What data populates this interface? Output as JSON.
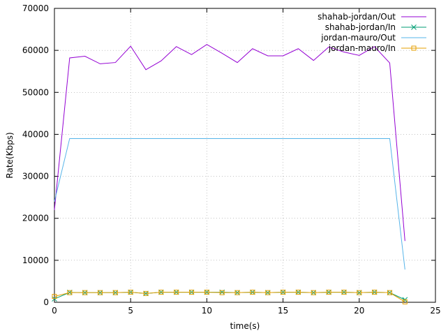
{
  "chart_data": {
    "type": "line",
    "title": "",
    "xlabel": "time(s)",
    "ylabel": "Rate(Kbps)",
    "xlim": [
      0,
      25
    ],
    "ylim": [
      0,
      70000
    ],
    "xticks": [
      0,
      5,
      10,
      15,
      20,
      25
    ],
    "yticks": [
      0,
      10000,
      20000,
      30000,
      40000,
      50000,
      60000,
      70000
    ],
    "grid": true,
    "legend_position": "top-right",
    "series": [
      {
        "name": "shahab-jordan/Out",
        "color": "#9400d3",
        "marker": "none",
        "x": [
          0,
          1,
          2,
          3,
          4,
          5,
          6,
          7,
          8,
          9,
          10,
          11,
          12,
          13,
          14,
          15,
          16,
          17,
          18,
          19,
          20,
          21,
          22,
          23
        ],
        "y": [
          22000,
          58200,
          58600,
          56800,
          57100,
          61000,
          55400,
          57500,
          60900,
          59000,
          61400,
          59300,
          57100,
          60400,
          58700,
          58700,
          60400,
          57600,
          60800,
          59600,
          58800,
          60900,
          57000,
          14600
        ]
      },
      {
        "name": "shahab-jordan/In",
        "color": "#009e73",
        "marker": "x",
        "x": [
          0,
          1,
          2,
          3,
          4,
          5,
          6,
          7,
          8,
          9,
          10,
          11,
          12,
          13,
          14,
          15,
          16,
          17,
          18,
          19,
          20,
          21,
          22,
          23
        ],
        "y": [
          800,
          2350,
          2300,
          2300,
          2300,
          2400,
          2100,
          2400,
          2400,
          2400,
          2400,
          2400,
          2300,
          2400,
          2300,
          2400,
          2400,
          2300,
          2400,
          2400,
          2300,
          2400,
          2300,
          600
        ]
      },
      {
        "name": "jordan-mauro/Out",
        "color": "#56b4e9",
        "marker": "none",
        "x": [
          0,
          1,
          2,
          3,
          4,
          5,
          6,
          7,
          8,
          9,
          10,
          11,
          12,
          13,
          14,
          15,
          16,
          17,
          18,
          19,
          20,
          21,
          22,
          23
        ],
        "y": [
          24000,
          39000,
          39000,
          39000,
          39000,
          39000,
          39000,
          39000,
          39000,
          39000,
          39000,
          39000,
          39000,
          39000,
          39000,
          39000,
          39000,
          39000,
          39000,
          39000,
          39000,
          39000,
          39000,
          7800
        ]
      },
      {
        "name": "jordan-mauro/In",
        "color": "#e69f00",
        "marker": "square",
        "x": [
          0,
          1,
          2,
          3,
          4,
          5,
          6,
          7,
          8,
          9,
          10,
          11,
          12,
          13,
          14,
          15,
          16,
          17,
          18,
          19,
          20,
          21,
          22,
          23
        ],
        "y": [
          1400,
          2300,
          2300,
          2300,
          2300,
          2400,
          2100,
          2400,
          2400,
          2400,
          2400,
          2300,
          2300,
          2400,
          2300,
          2400,
          2400,
          2300,
          2400,
          2400,
          2300,
          2400,
          2300,
          100
        ]
      }
    ]
  }
}
